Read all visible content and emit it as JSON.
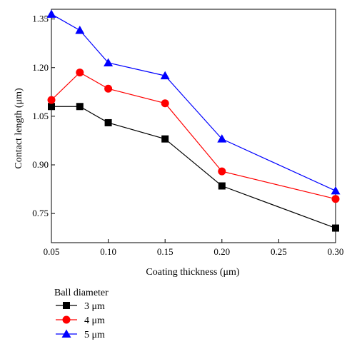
{
  "chart_data": {
    "type": "line",
    "xlabel": "Coating thickness (μm)",
    "ylabel": "Contact length (μm)",
    "xlim": [
      0.05,
      0.3
    ],
    "ylim": [
      0.66,
      1.38
    ],
    "x_ticks": [
      "0.05",
      "0.10",
      "0.15",
      "0.20",
      "0.25",
      "0.30"
    ],
    "y_ticks": [
      "0.75",
      "0.90",
      "1.05",
      "1.20",
      "1.35"
    ],
    "grid": false,
    "legend_title": "Ball diameter",
    "legend_position": "bottom-left, outside plot",
    "series": [
      {
        "name": "3 μm",
        "color": "#000000",
        "marker": "square",
        "x": [
          0.05,
          0.075,
          0.1,
          0.15,
          0.2,
          0.3
        ],
        "y": [
          1.08,
          1.08,
          1.03,
          0.98,
          0.835,
          0.705
        ]
      },
      {
        "name": "4 μm",
        "color": "#ff0000",
        "marker": "circle",
        "x": [
          0.05,
          0.075,
          0.1,
          0.15,
          0.2,
          0.3
        ],
        "y": [
          1.1,
          1.185,
          1.135,
          1.09,
          0.88,
          0.795
        ]
      },
      {
        "name": "5 μm",
        "color": "#0000ff",
        "marker": "triangle",
        "x": [
          0.05,
          0.075,
          0.1,
          0.15,
          0.2,
          0.3
        ],
        "y": [
          1.365,
          1.315,
          1.215,
          1.175,
          0.98,
          0.82
        ]
      }
    ]
  }
}
